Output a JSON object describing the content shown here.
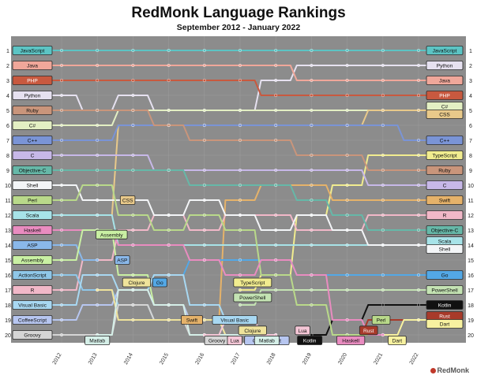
{
  "chart_data": {
    "type": "line",
    "title": "RedMonk Language Rankings",
    "subtitle": "September 2012 - January 2022",
    "x": [
      "2012",
      "2013",
      "2014",
      "2015",
      "2016",
      "2017",
      "2018",
      "2019",
      "2020",
      "2021",
      "2022"
    ],
    "y_ticks": [
      "1",
      "2",
      "3",
      "4",
      "5",
      "6",
      "7",
      "8",
      "9",
      "10",
      "11",
      "12",
      "13",
      "14",
      "15",
      "16",
      "17",
      "18",
      "19",
      "20"
    ],
    "ylim": [
      1,
      20
    ],
    "y_inverted": true,
    "background": "#8c8c8c",
    "grid": true,
    "series": [
      {
        "name": "JavaScript",
        "color": "#5cc4c4",
        "start": 0,
        "values": [
          1,
          1,
          1,
          1,
          1,
          1,
          1,
          1,
          1,
          1,
          1
        ],
        "left_label": true,
        "right_label": true
      },
      {
        "name": "Python",
        "color": "#e6e1f0",
        "start": 0,
        "values": [
          4,
          5,
          4,
          5,
          5,
          5,
          3,
          2,
          2,
          2,
          2
        ],
        "left_label": true,
        "right_label": true
      },
      {
        "name": "Java",
        "color": "#f0a79a",
        "start": 0,
        "values": [
          2,
          2,
          2,
          2,
          2,
          2,
          2,
          3,
          3,
          3,
          3
        ],
        "left_label": true,
        "right_label": true
      },
      {
        "name": "PHP",
        "color": "#c8593f",
        "start": 0,
        "values": [
          3,
          3,
          3,
          3,
          3,
          3,
          4,
          4,
          4,
          4,
          4
        ],
        "left_label": true,
        "right_label": true
      },
      {
        "name": "C#",
        "color": "#e3efc3",
        "start": 0,
        "values": [
          6,
          6,
          5,
          5,
          5,
          5,
          5,
          5,
          5,
          5,
          5
        ],
        "left_label": true,
        "right_label": true
      },
      {
        "name": "CSS",
        "color": "#e8c98a",
        "start": 1,
        "values": [
          null,
          12,
          6,
          6,
          6,
          6,
          6,
          6,
          6,
          5,
          5
        ],
        "left_label": false,
        "right_label": true
      },
      {
        "name": "C++",
        "color": "#7a94d6",
        "start": 0,
        "values": [
          7,
          7,
          6,
          6,
          6,
          6,
          6,
          6,
          6,
          6,
          7
        ],
        "left_label": true,
        "right_label": true
      },
      {
        "name": "TypeScript",
        "color": "#f1ec8f",
        "start": 5,
        "values": [
          null,
          null,
          null,
          null,
          null,
          17,
          16,
          12,
          10,
          8,
          8
        ],
        "left_label": false,
        "right_label": true
      },
      {
        "name": "Ruby",
        "color": "#c9957b",
        "start": 0,
        "values": [
          5,
          5,
          5,
          6,
          7,
          7,
          7,
          8,
          8,
          9,
          9
        ],
        "left_label": true,
        "right_label": true
      },
      {
        "name": "C",
        "color": "#c7b8e8",
        "start": 0,
        "values": [
          8,
          8,
          8,
          9,
          9,
          9,
          9,
          9,
          9,
          10,
          10
        ],
        "left_label": true,
        "right_label": true
      },
      {
        "name": "Swift",
        "color": "#e5b26a",
        "start": 4,
        "values": [
          null,
          null,
          null,
          null,
          19,
          11,
          10,
          10,
          11,
          11,
          11
        ],
        "left_label": false,
        "right_label": true
      },
      {
        "name": "R",
        "color": "#f1b8c8",
        "start": 0,
        "values": [
          17,
          15,
          13,
          12,
          13,
          12,
          12,
          13,
          13,
          12,
          12
        ],
        "left_label": true,
        "right_label": true
      },
      {
        "name": "Objective-C",
        "color": "#66b8a8",
        "start": 0,
        "values": [
          9,
          9,
          9,
          9,
          10,
          10,
          10,
          11,
          12,
          13,
          13
        ],
        "left_label": true,
        "right_label": true
      },
      {
        "name": "Scala",
        "color": "#a7e3e8",
        "start": 0,
        "values": [
          12,
          12,
          14,
          14,
          14,
          14,
          14,
          14,
          14,
          14,
          14
        ],
        "left_label": true,
        "right_label": true
      },
      {
        "name": "Shell",
        "color": "#f3f5f7",
        "start": 0,
        "values": [
          10,
          11,
          11,
          12,
          11,
          12,
          13,
          12,
          13,
          14,
          14
        ],
        "left_label": true,
        "right_label": true
      },
      {
        "name": "Go",
        "color": "#53a8e6",
        "start": 2,
        "values": [
          null,
          null,
          17,
          16,
          15,
          15,
          15,
          16,
          16,
          16,
          16
        ],
        "left_label": false,
        "right_label": true
      },
      {
        "name": "PowerShell",
        "color": "#c4e3b3",
        "start": 5,
        "values": [
          null,
          null,
          null,
          null,
          null,
          18,
          17,
          17,
          17,
          17,
          17
        ],
        "left_label": false,
        "right_label": true
      },
      {
        "name": "Kotlin",
        "color": "#111111",
        "start": 7,
        "values": [
          null,
          null,
          null,
          null,
          null,
          null,
          null,
          20,
          19,
          18,
          18
        ],
        "left_label": false,
        "right_label": true
      },
      {
        "name": "Rust",
        "color": "#a83a2a",
        "start": 8,
        "values": [
          null,
          null,
          null,
          null,
          null,
          null,
          null,
          null,
          20,
          19,
          19
        ],
        "left_label": false,
        "right_label": true
      },
      {
        "name": "Dart",
        "color": "#f8f2a0",
        "start": 9,
        "values": [
          null,
          null,
          null,
          null,
          null,
          null,
          null,
          null,
          null,
          20,
          19
        ],
        "left_label": false,
        "right_label": true
      },
      {
        "name": "Perl",
        "color": "#b9d98a",
        "start": 0,
        "values": [
          11,
          10,
          12,
          13,
          12,
          13,
          16,
          18,
          20,
          20,
          null
        ],
        "left_label": true,
        "right_label": false
      },
      {
        "name": "Haskell",
        "color": "#e98cc0",
        "start": 0,
        "values": [
          13,
          13,
          14,
          14,
          15,
          16,
          15,
          16,
          19,
          20,
          null
        ],
        "left_label": true,
        "right_label": false
      },
      {
        "name": "ASP",
        "color": "#8ab8ea",
        "start": 0,
        "values": [
          14,
          15,
          null,
          null,
          null,
          null,
          null,
          null,
          null,
          null,
          null
        ],
        "left_label": true,
        "right_label": false
      },
      {
        "name": "Assembly",
        "color": "#c9f0a3",
        "start": 0,
        "values": [
          15,
          13,
          16,
          18,
          19,
          19,
          20,
          null,
          null,
          null,
          null
        ],
        "left_label": true,
        "right_label": false
      },
      {
        "name": "ActionScript",
        "color": "#8fc7e8",
        "start": 0,
        "values": [
          16,
          17,
          18,
          19,
          null,
          null,
          null,
          null,
          null,
          null,
          null
        ],
        "left_label": true,
        "right_label": false
      },
      {
        "name": "Visual Basic",
        "color": "#a8d8f2",
        "start": 0,
        "values": [
          18,
          16,
          17,
          16,
          18,
          19,
          null,
          null,
          null,
          null,
          null
        ],
        "left_label": true,
        "right_label": false
      },
      {
        "name": "CoffeeScript",
        "color": "#b7c6f0",
        "start": 0,
        "values": [
          19,
          18,
          17,
          18,
          19,
          20,
          20,
          null,
          null,
          null,
          null
        ],
        "left_label": true,
        "right_label": false
      },
      {
        "name": "Groovy",
        "color": "#d5d5d5",
        "start": 0,
        "values": [
          20,
          20,
          18,
          19,
          20,
          20,
          null,
          null,
          null,
          null,
          null
        ],
        "left_label": true,
        "right_label": false
      },
      {
        "name": "Clojure",
        "color": "#efe39b",
        "start": 1,
        "values": [
          null,
          17,
          19,
          19,
          19,
          20,
          null,
          null,
          null,
          null,
          null
        ],
        "left_label": false,
        "right_label": false
      },
      {
        "name": "Matlab",
        "color": "#d5efe8",
        "start": 1,
        "values": [
          null,
          20,
          17,
          18,
          20,
          20,
          20,
          null,
          null,
          null,
          null
        ],
        "left_label": false,
        "right_label": false
      },
      {
        "name": "Lua",
        "color": "#f4c6d6",
        "start": 4,
        "values": [
          null,
          null,
          null,
          null,
          20,
          19,
          20,
          null,
          null,
          null,
          null
        ],
        "left_label": false,
        "right_label": false
      }
    ],
    "annotations": [
      {
        "text": "CSS",
        "series": "CSS",
        "x": 1.85,
        "y": 11
      },
      {
        "text": "Assembly",
        "series": "Assembly",
        "x": 1.4,
        "y": 13.3
      },
      {
        "text": "ASP",
        "series": "ASP",
        "x": 1.7,
        "y": 15
      },
      {
        "text": "Clojure",
        "series": "Clojure",
        "x": 2.1,
        "y": 16.5
      },
      {
        "text": "Go",
        "series": "Go",
        "x": 2.75,
        "y": 16.5
      },
      {
        "text": "Swift",
        "series": "Swift",
        "x": 3.65,
        "y": 19
      },
      {
        "text": "Visual Basic",
        "series": "Visual Basic",
        "x": 4.85,
        "y": 19
      },
      {
        "text": "TypeScript",
        "series": "TypeScript",
        "x": 5.35,
        "y": 16.5
      },
      {
        "text": "PowerShell",
        "series": "PowerShell",
        "x": 5.35,
        "y": 17.5
      },
      {
        "text": "Clojure",
        "series": "Clojure",
        "x": 5.35,
        "y": 19.7
      },
      {
        "text": "Lua",
        "series": "Lua",
        "x": 6.75,
        "y": 19.7
      },
      {
        "text": "Groovy",
        "series": "Groovy",
        "x": 4.35,
        "y": 20.6
      },
      {
        "text": "Lua",
        "series": "Lua",
        "x": 4.85,
        "y": 20.6
      },
      {
        "text": "CoffeeScript",
        "series": "CoffeeScript",
        "x": 5.75,
        "y": 20.4
      },
      {
        "text": "Matlab",
        "series": "Matlab",
        "x": 5.75,
        "y": 20.9
      },
      {
        "text": "Matlab",
        "series": "Matlab",
        "x": 1.0,
        "y": 20.4
      },
      {
        "text": "Kotlin",
        "series": "Kotlin",
        "x": 6.95,
        "y": 20.5
      },
      {
        "text": "Haskell",
        "series": "Haskell",
        "x": 8.1,
        "y": 20.5
      },
      {
        "text": "Rust",
        "series": "Rust",
        "x": 8.6,
        "y": 19.7
      },
      {
        "text": "Perl",
        "series": "Perl",
        "x": 8.95,
        "y": 19.0
      },
      {
        "text": "Dart",
        "series": "Dart",
        "x": 9.4,
        "y": 20.4
      }
    ]
  },
  "brand": "RedMonk"
}
